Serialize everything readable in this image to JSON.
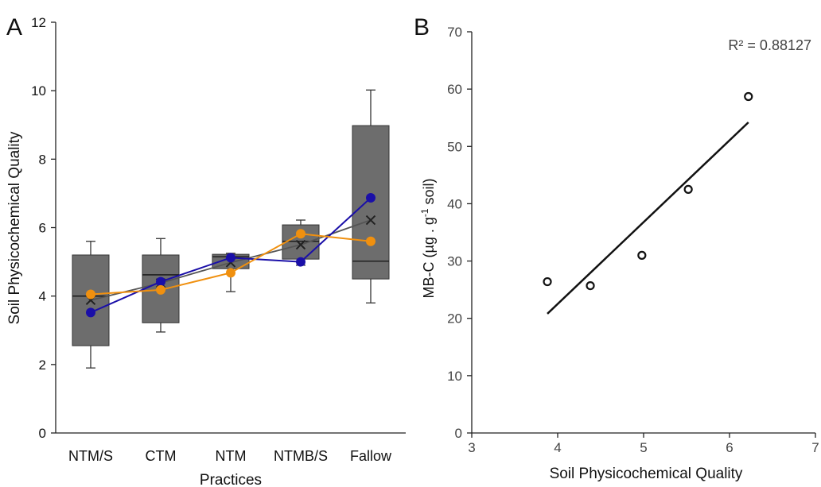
{
  "chart_data": [
    {
      "panel_label": "A",
      "type": "box",
      "xlabel": "Practices",
      "ylabel": "Soil Physicochemical Quality",
      "ylim": [
        0,
        12
      ],
      "yticks": [
        0,
        2,
        4,
        6,
        8,
        10,
        12
      ],
      "grid": false,
      "categories": [
        "NTM/S",
        "CTM",
        "NTM",
        "NTMB/S",
        "Fallow"
      ],
      "boxes": [
        {
          "min": 1.9,
          "q1": 2.55,
          "median": 4.0,
          "q3": 5.2,
          "max": 5.6,
          "mean": 3.88
        },
        {
          "min": 2.95,
          "q1": 3.22,
          "median": 4.62,
          "q3": 5.2,
          "max": 5.68,
          "mean": 4.38
        },
        {
          "min": 4.13,
          "q1": 4.8,
          "median": 5.15,
          "q3": 5.22,
          "max": 5.25,
          "mean": 4.98
        },
        {
          "min": 4.9,
          "q1": 5.08,
          "median": 5.6,
          "q3": 6.08,
          "max": 6.22,
          "mean": 5.5
        },
        {
          "min": 3.8,
          "q1": 4.5,
          "median": 5.02,
          "q3": 8.98,
          "max": 10.02,
          "mean": 6.22
        }
      ],
      "series": [
        {
          "color": "#1a0fa8",
          "values": [
            3.52,
            4.42,
            5.12,
            5.0,
            6.87
          ]
        },
        {
          "color": "#f0900f",
          "values": [
            4.05,
            4.18,
            4.68,
            5.82,
            5.6
          ]
        }
      ],
      "colors": {
        "box_fill": "#6d6d6d",
        "mean_line": "#555555"
      }
    },
    {
      "panel_label": "B",
      "type": "scatter",
      "xlabel": "Soil Physicochemical Quality",
      "ylabel": "MB-C (µg . g⁻¹ soil)",
      "ylabel_parts": {
        "pre": "MB-C (µg . g",
        "sup": "-1",
        "post": " soil)"
      },
      "xlim": [
        3,
        7
      ],
      "ylim": [
        0,
        70
      ],
      "xticks": [
        3,
        4,
        5,
        6,
        7
      ],
      "yticks": [
        0,
        10,
        20,
        30,
        40,
        50,
        60,
        70
      ],
      "grid": false,
      "annotation": "R² = 0.88127",
      "points": [
        {
          "x": 3.88,
          "y": 26.4
        },
        {
          "x": 4.38,
          "y": 25.7
        },
        {
          "x": 4.98,
          "y": 31.0
        },
        {
          "x": 5.52,
          "y": 42.5
        },
        {
          "x": 6.22,
          "y": 58.7
        }
      ],
      "trendline": {
        "x": [
          3.88,
          6.22
        ],
        "y": [
          20.8,
          54.2
        ]
      }
    }
  ]
}
